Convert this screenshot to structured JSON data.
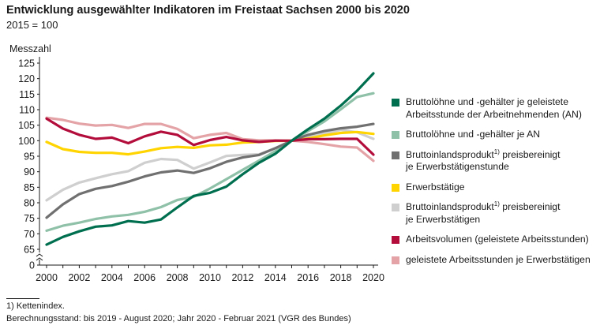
{
  "header": {
    "title": "Entwicklung ausgewählter Indikatoren im Freistaat Sachsen 2000 bis 2020",
    "subtitle": "2015 = 100"
  },
  "chart_data": {
    "type": "line",
    "ylabel": "Messzahl",
    "xlabel": "",
    "x": [
      2000,
      2001,
      2002,
      2003,
      2004,
      2005,
      2006,
      2007,
      2008,
      2009,
      2010,
      2011,
      2012,
      2013,
      2014,
      2015,
      2016,
      2017,
      2018,
      2019,
      2020
    ],
    "xticks": [
      "2000",
      "2002",
      "2004",
      "2006",
      "2008",
      "2010",
      "2012",
      "2014",
      "2016",
      "2018",
      "2020"
    ],
    "yticks": [
      "0",
      "65",
      "70",
      "75",
      "80",
      "85",
      "90",
      "95",
      "100",
      "105",
      "110",
      "115",
      "120",
      "125"
    ],
    "ylim": [
      65,
      125
    ],
    "axis_break": true,
    "grid": false,
    "legend_position": "right",
    "series": [
      {
        "key": "a",
        "color": "#006f4f",
        "values": [
          66.5,
          69,
          70.8,
          72.3,
          72.7,
          74.1,
          73.6,
          74.6,
          78.5,
          82.2,
          83.2,
          85.2,
          89.2,
          92.9,
          95.8,
          100,
          103.7,
          107.1,
          111.3,
          116.1,
          121.7
        ]
      },
      {
        "key": "b",
        "color": "#8fc0a8",
        "values": [
          71,
          72.6,
          73.6,
          74.8,
          75.6,
          76.1,
          77.1,
          78.6,
          80.9,
          81.9,
          84.6,
          87.6,
          90.6,
          93.6,
          96.6,
          100,
          103.1,
          106.2,
          110.1,
          114.1,
          115.3
        ]
      },
      {
        "key": "c",
        "color": "#707070",
        "values": [
          75.2,
          79.5,
          82.8,
          84.5,
          85.4,
          86.8,
          88.5,
          89.8,
          90.4,
          89.6,
          91.1,
          93.2,
          94.6,
          95.4,
          97.6,
          100,
          101.9,
          103.1,
          104,
          104.5,
          105.4
        ]
      },
      {
        "key": "d",
        "color": "#ffd400",
        "values": [
          99.6,
          97.3,
          96.4,
          96.1,
          96.1,
          95.6,
          96.5,
          97.6,
          98,
          97.7,
          98.5,
          98.7,
          99.4,
          99.6,
          99.9,
          100,
          100.7,
          101.7,
          102.5,
          102.8,
          102.2
        ]
      },
      {
        "key": "e",
        "color": "#cfcfcf",
        "values": [
          80.8,
          84.2,
          86.5,
          87.9,
          89.2,
          90.2,
          92.9,
          94.1,
          93.8,
          91,
          93,
          95.1,
          95.4,
          95.6,
          97.6,
          100,
          101.2,
          102.3,
          103.5,
          102.7,
          100.6
        ]
      },
      {
        "key": "f",
        "color": "#b30d3c",
        "values": [
          107.1,
          103.9,
          101.9,
          100.6,
          101,
          99.2,
          101.4,
          102.9,
          101.9,
          98.6,
          100.2,
          101.2,
          100.1,
          99.6,
          100,
          100,
          100.5,
          100.5,
          100.6,
          100.6,
          95.5
        ]
      },
      {
        "key": "g",
        "color": "#e4a3a6",
        "values": [
          107.4,
          106.7,
          105.5,
          104.9,
          105.1,
          104.1,
          105.4,
          105.4,
          103.8,
          100.8,
          101.9,
          102.5,
          100.5,
          100.1,
          100.1,
          100,
          99.6,
          98.9,
          98.1,
          97.8,
          93.5
        ]
      }
    ]
  },
  "legend": {
    "a": {
      "line1": "Bruttolöhne und -gehälter je geleistete",
      "line2": "Arbeitsstunde der Arbeitnehmenden (AN)"
    },
    "b": {
      "line1": "Bruttolöhne und -gehälter je AN"
    },
    "c": {
      "pre": "Bruttoinlandsprodukt",
      "sup": "1)",
      "post": " preisbereinigt",
      "line2": "je Erwerbstätigenstunde"
    },
    "d": {
      "line1": "Erwerbstätige"
    },
    "e": {
      "pre": "Bruttoinlandsprodukt",
      "sup": "1)",
      "post": " preisbereinigt",
      "line2": "je Erwerbstätigen"
    },
    "f": {
      "line1": "Arbeitsvolumen (geleistete Arbeitsstunden)"
    },
    "g": {
      "line1": "geleistete Arbeitsstunden je Erwerbstätigen"
    }
  },
  "footnotes": {
    "note1": "1) Kettenindex.",
    "note2": "Berechnungsstand: bis 2019 - August 2020; Jahr 2020 - Februar 2021 (VGR des Bundes)"
  }
}
